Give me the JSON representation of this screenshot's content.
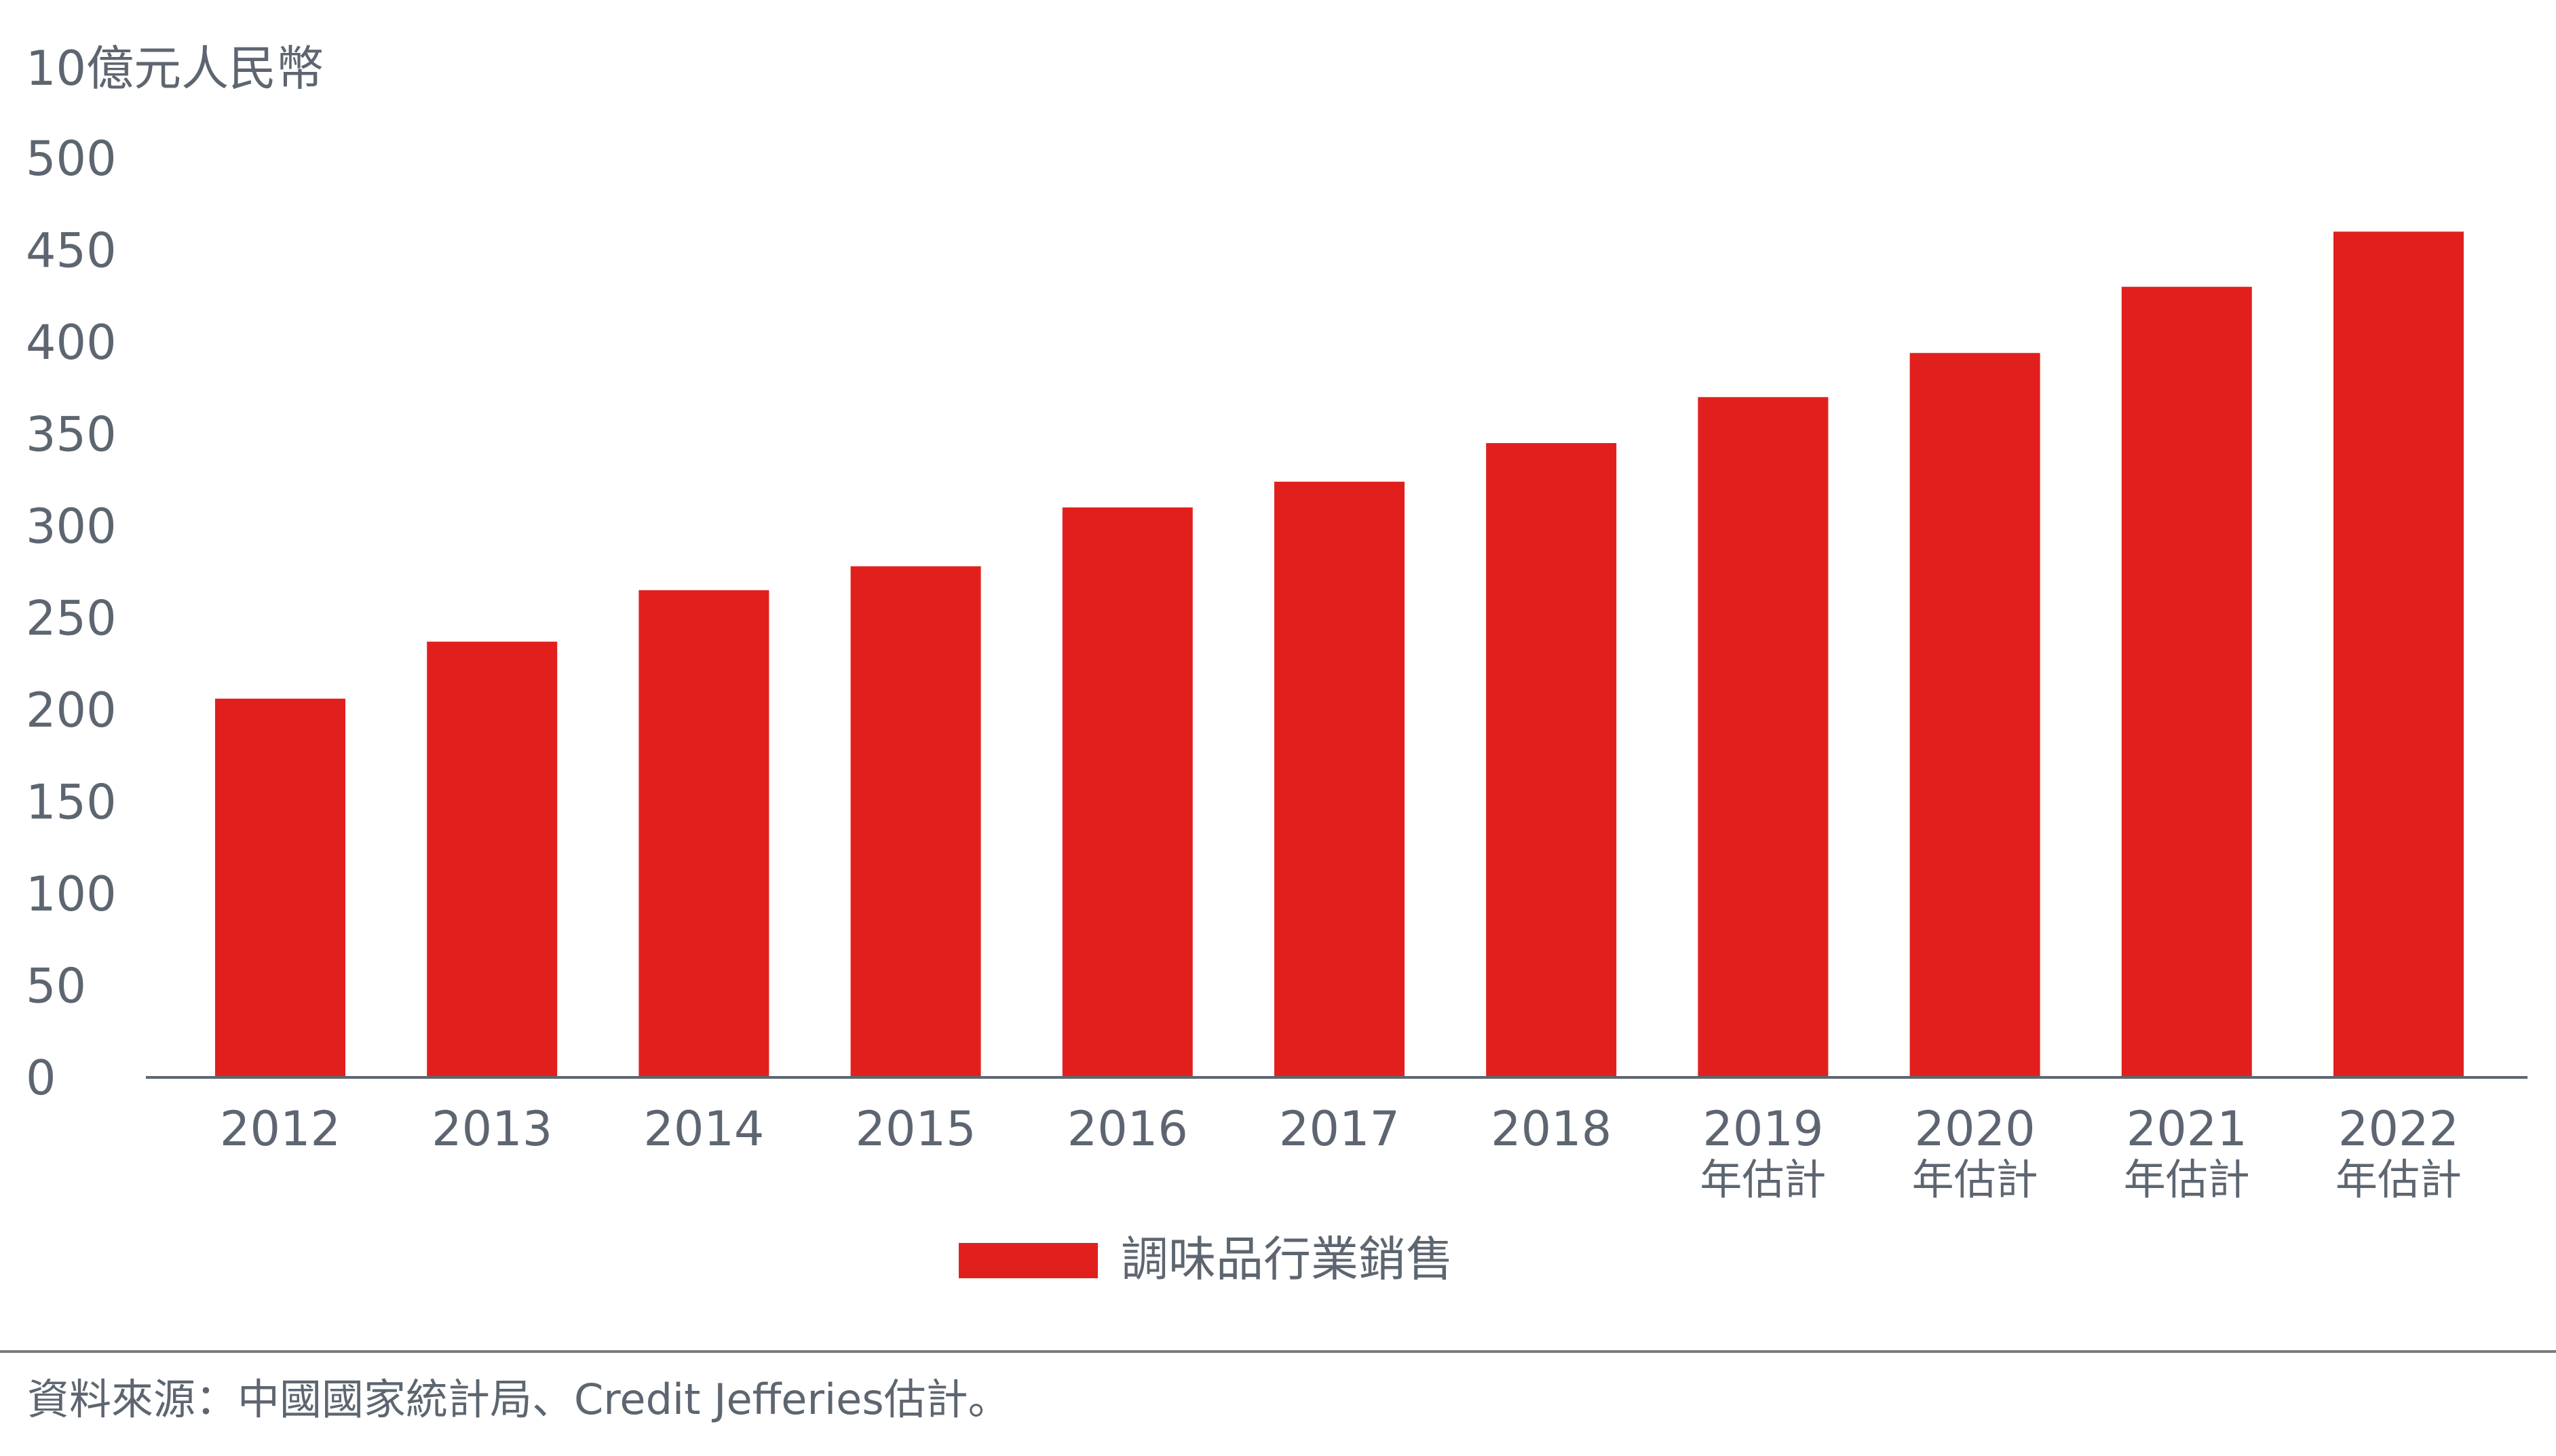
{
  "chart_data": {
    "type": "bar",
    "ylabel": "10億元人民幣",
    "ylim": [
      0,
      500
    ],
    "yticks": [
      0,
      50,
      100,
      150,
      200,
      250,
      300,
      350,
      400,
      450,
      500
    ],
    "grid": false,
    "categories": [
      "2012",
      "2013",
      "2014",
      "2015",
      "2016",
      "2017",
      "2018",
      "2019",
      "2020",
      "2021",
      "2022"
    ],
    "category_sublabels": [
      "",
      "",
      "",
      "",
      "",
      "",
      "",
      "年估計",
      "年估計",
      "年估計",
      "年估計"
    ],
    "series": [
      {
        "name": "調味品行業銷售",
        "color": "#e1201e",
        "values": [
          206,
          237,
          265,
          278,
          310,
          324,
          345,
          370,
          394,
          430,
          460
        ]
      }
    ],
    "legend_position": "bottom-center"
  },
  "footer": {
    "source": "資料來源：中國國家統計局、Credit Jefferies估計。"
  },
  "colors": {
    "bar": "#e1201e",
    "text": "#5d6670",
    "axis": "#5d6670",
    "rule": "#7a7a7a"
  }
}
